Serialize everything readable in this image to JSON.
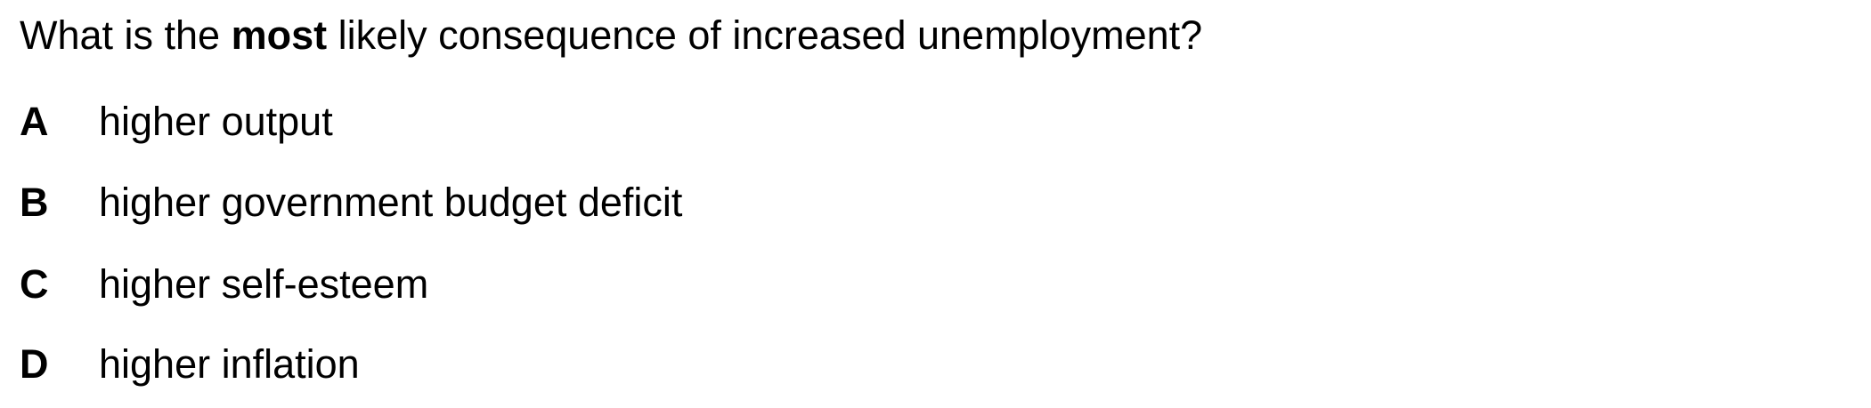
{
  "question": {
    "prefix": "What is the ",
    "emphasis": "most",
    "suffix": " likely consequence of increased unemployment?"
  },
  "options": [
    {
      "letter": "A",
      "text": "higher output"
    },
    {
      "letter": "B",
      "text": "higher government budget deficit"
    },
    {
      "letter": "C",
      "text": "higher self-esteem"
    },
    {
      "letter": "D",
      "text": "higher inflation"
    }
  ]
}
